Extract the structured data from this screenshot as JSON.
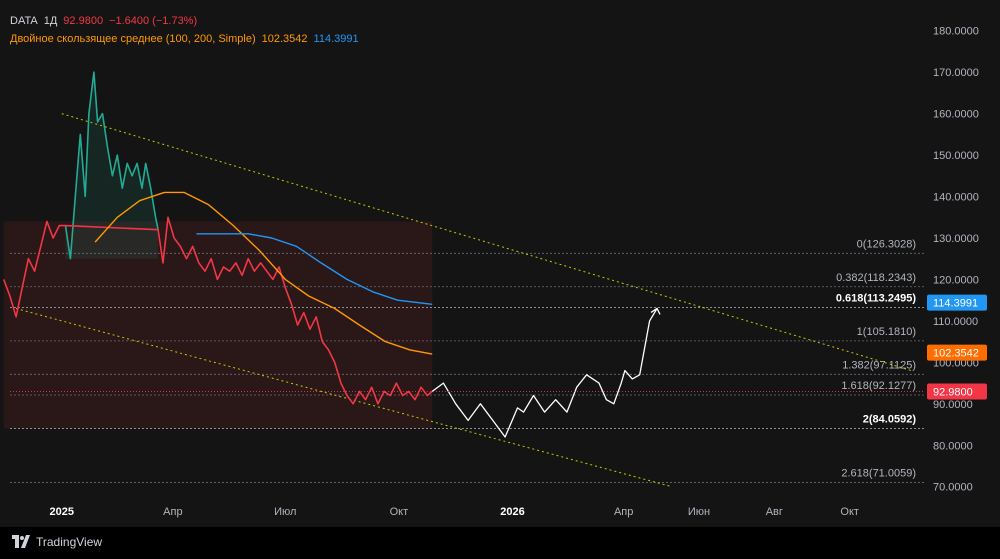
{
  "header": {
    "symbol": "DATA",
    "interval": "1Д",
    "last_price": "92.9800",
    "change": "−1.6400 (−1.73%)",
    "indicator_label": "Двойное скользящее среднее (100, 200, Simple)",
    "ma_fast_value": "102.3542",
    "ma_slow_value": "114.3991"
  },
  "footer": {
    "brand": "TradingView"
  },
  "colors": {
    "background": "#141414",
    "up": "#22ab94",
    "down": "#f23645",
    "ma_fast": "#ff9800",
    "ma_slow": "#2196f3",
    "channel": "#c8c800",
    "projection": "#ffffff",
    "grid_text": "#b2b5be"
  },
  "chart_data": {
    "type": "line",
    "ylim": [
      68,
      185
    ],
    "y_ticks": [
      "180.0000",
      "170.0000",
      "160.0000",
      "150.0000",
      "140.0000",
      "130.0000",
      "120.0000",
      "110.0000",
      "100.0000",
      "90.0000",
      "80.0000",
      "70.0000"
    ],
    "x_ticks": [
      {
        "label": "2025",
        "date": "2025-01-01",
        "bold": true
      },
      {
        "label": "Апр",
        "date": "2025-04-01",
        "bold": false
      },
      {
        "label": "Июл",
        "date": "2025-07-01",
        "bold": false
      },
      {
        "label": "Окт",
        "date": "2025-10-01",
        "bold": false
      },
      {
        "label": "2026",
        "date": "2026-01-01",
        "bold": true
      },
      {
        "label": "Апр",
        "date": "2026-04-01",
        "bold": false
      },
      {
        "label": "Июн",
        "date": "2026-06-01",
        "bold": false
      },
      {
        "label": "Авг",
        "date": "2026-08-01",
        "bold": false
      },
      {
        "label": "Окт",
        "date": "2026-10-01",
        "bold": false
      }
    ],
    "series": [
      {
        "color": "#22ab94",
        "points": [
          [
            "2025-01-04",
            133
          ],
          [
            "2025-01-08",
            125
          ],
          [
            "2025-01-12",
            140
          ],
          [
            "2025-01-16",
            155
          ],
          [
            "2025-01-20",
            140
          ],
          [
            "2025-01-23",
            160
          ],
          [
            "2025-01-27",
            170
          ],
          [
            "2025-01-30",
            158
          ],
          [
            "2025-02-03",
            160
          ],
          [
            "2025-02-07",
            152
          ],
          [
            "2025-02-11",
            145
          ],
          [
            "2025-02-15",
            150
          ],
          [
            "2025-02-19",
            142
          ],
          [
            "2025-02-23",
            148
          ],
          [
            "2025-02-27",
            145
          ],
          [
            "2025-03-03",
            148
          ],
          [
            "2025-03-07",
            142
          ],
          [
            "2025-03-10",
            148
          ],
          [
            "2025-03-14",
            142
          ],
          [
            "2025-03-18",
            135
          ],
          [
            "2025-03-20",
            132
          ]
        ]
      },
      {
        "color": "#f23645",
        "points": [
          [
            "2024-11-15",
            120
          ],
          [
            "2024-11-20",
            116
          ],
          [
            "2024-11-25",
            111
          ],
          [
            "2024-11-30",
            118
          ],
          [
            "2024-12-05",
            125
          ],
          [
            "2024-12-10",
            122
          ],
          [
            "2024-12-15",
            128
          ],
          [
            "2024-12-20",
            134
          ],
          [
            "2024-12-25",
            130
          ],
          [
            "2024-12-30",
            133
          ],
          [
            "2025-01-04",
            133
          ],
          [
            "2025-03-20",
            132
          ],
          [
            "2025-03-24",
            124
          ],
          [
            "2025-03-28",
            135
          ],
          [
            "2025-04-02",
            130
          ],
          [
            "2025-04-07",
            128
          ],
          [
            "2025-04-12",
            125
          ],
          [
            "2025-04-17",
            128
          ],
          [
            "2025-04-22",
            124
          ],
          [
            "2025-04-27",
            122
          ],
          [
            "2025-05-02",
            125
          ],
          [
            "2025-05-07",
            120
          ],
          [
            "2025-05-12",
            123
          ],
          [
            "2025-05-17",
            122
          ],
          [
            "2025-05-22",
            124
          ],
          [
            "2025-05-27",
            121
          ],
          [
            "2025-06-01",
            125
          ],
          [
            "2025-06-06",
            122
          ],
          [
            "2025-06-11",
            124
          ],
          [
            "2025-06-16",
            122
          ],
          [
            "2025-06-21",
            120
          ],
          [
            "2025-06-26",
            123
          ],
          [
            "2025-07-01",
            118
          ],
          [
            "2025-07-06",
            114
          ],
          [
            "2025-07-11",
            109
          ],
          [
            "2025-07-16",
            112
          ],
          [
            "2025-07-21",
            108
          ],
          [
            "2025-07-26",
            111
          ],
          [
            "2025-07-31",
            105
          ],
          [
            "2025-08-05",
            103
          ],
          [
            "2025-08-10",
            100
          ],
          [
            "2025-08-15",
            95
          ],
          [
            "2025-08-20",
            92
          ],
          [
            "2025-08-25",
            90
          ],
          [
            "2025-08-30",
            93
          ],
          [
            "2025-09-04",
            91
          ],
          [
            "2025-09-09",
            94
          ],
          [
            "2025-09-14",
            90
          ],
          [
            "2025-09-19",
            93
          ],
          [
            "2025-09-24",
            92
          ],
          [
            "2025-09-29",
            95
          ],
          [
            "2025-10-04",
            92
          ],
          [
            "2025-10-09",
            93
          ],
          [
            "2025-10-14",
            91
          ],
          [
            "2025-10-19",
            94
          ],
          [
            "2025-10-24",
            92
          ],
          [
            "2025-10-28",
            93
          ]
        ]
      },
      {
        "name": "MA 100",
        "color": "#ff9800",
        "points": [
          [
            "2025-01-28",
            129
          ],
          [
            "2025-02-15",
            135
          ],
          [
            "2025-03-05",
            139
          ],
          [
            "2025-03-25",
            141
          ],
          [
            "2025-04-10",
            141
          ],
          [
            "2025-04-30",
            138
          ],
          [
            "2025-05-20",
            133
          ],
          [
            "2025-06-10",
            127
          ],
          [
            "2025-07-01",
            120
          ],
          [
            "2025-07-20",
            116
          ],
          [
            "2025-08-10",
            113
          ],
          [
            "2025-08-30",
            109
          ],
          [
            "2025-09-20",
            105
          ],
          [
            "2025-10-10",
            103
          ],
          [
            "2025-10-28",
            102
          ]
        ]
      },
      {
        "name": "MA 200",
        "color": "#2196f3",
        "points": [
          [
            "2025-04-20",
            131
          ],
          [
            "2025-05-10",
            131
          ],
          [
            "2025-06-01",
            131
          ],
          [
            "2025-06-20",
            130
          ],
          [
            "2025-07-10",
            128
          ],
          [
            "2025-07-30",
            124
          ],
          [
            "2025-08-20",
            120
          ],
          [
            "2025-09-10",
            117
          ],
          [
            "2025-09-30",
            115
          ],
          [
            "2025-10-28",
            114
          ]
        ]
      },
      {
        "name": "Projection",
        "color": "#ffffff",
        "points": [
          [
            "2025-10-28",
            93
          ],
          [
            "2025-11-06",
            95
          ],
          [
            "2025-11-16",
            90
          ],
          [
            "2025-11-26",
            86
          ],
          [
            "2025-12-06",
            90
          ],
          [
            "2025-12-16",
            86
          ],
          [
            "2025-12-26",
            82
          ],
          [
            "2026-01-05",
            89
          ],
          [
            "2026-01-10",
            88
          ],
          [
            "2026-01-18",
            92
          ],
          [
            "2026-01-27",
            88
          ],
          [
            "2026-02-05",
            91
          ],
          [
            "2026-02-14",
            88
          ],
          [
            "2026-02-22",
            94
          ],
          [
            "2026-03-02",
            97
          ],
          [
            "2026-03-12",
            95
          ],
          [
            "2026-03-18",
            91
          ],
          [
            "2026-03-24",
            90
          ],
          [
            "2026-03-30",
            95
          ],
          [
            "2026-04-02",
            98
          ],
          [
            "2026-04-08",
            96
          ],
          [
            "2026-04-14",
            97
          ],
          [
            "2026-04-22",
            110
          ],
          [
            "2026-04-28",
            113
          ]
        ]
      }
    ],
    "channel": {
      "upper": [
        [
          "2025-01-01",
          160
        ],
        [
          "2026-11-20",
          98
        ]
      ],
      "lower": [
        [
          "2024-11-25",
          113
        ],
        [
          "2026-05-10",
          70
        ]
      ]
    },
    "rectangle": {
      "x0": "2024-11-15",
      "x1": "2025-10-28",
      "y0": 84.0592,
      "y1": 134.0
    },
    "fib_levels": [
      {
        "label": "0(126.3028)",
        "value": 126.3028,
        "bold": false
      },
      {
        "label": "0.382(118.2343)",
        "value": 118.2343,
        "bold": false
      },
      {
        "label": "0.618(113.2495)",
        "value": 113.2495,
        "bold": true
      },
      {
        "label": "1(105.1810)",
        "value": 105.181,
        "bold": false
      },
      {
        "label": "1.382(97.1125)",
        "value": 97.1125,
        "bold": false
      },
      {
        "label": "1.618(92.1277)",
        "value": 92.1277,
        "bold": false
      },
      {
        "label": "2(84.0592)",
        "value": 84.0592,
        "bold": true
      },
      {
        "label": "2.618(71.0059)",
        "value": 71.0059,
        "bold": false
      }
    ],
    "price_tags": [
      {
        "label": "114.3991",
        "value": 114.3991,
        "color": "#2196f3"
      },
      {
        "label": "102.3542",
        "value": 102.3542,
        "color": "#ff6d00"
      },
      {
        "label": "92.9800",
        "value": 92.98,
        "color": "#f23645"
      }
    ]
  }
}
